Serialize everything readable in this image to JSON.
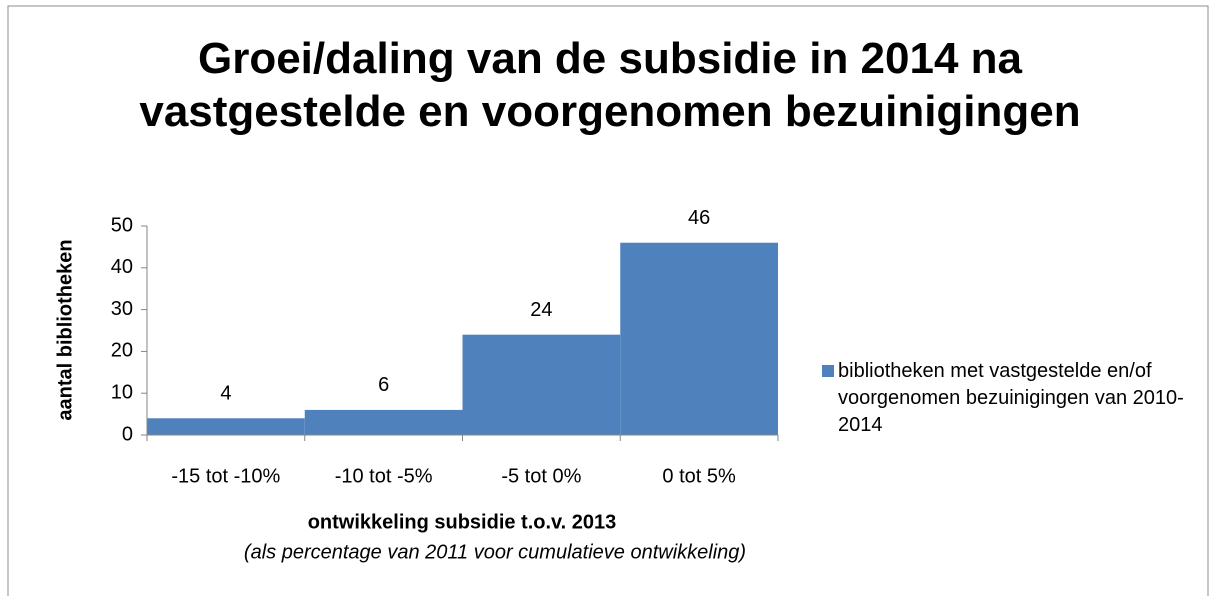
{
  "chart_data": {
    "type": "bar",
    "title": "Groei/daling van de subsidie in 2014 na vastgestelde en voorgenomen bezuinigingen",
    "xlabel": "ontwikkeling subsidie t.o.v. 2013",
    "subtitle": "(als percentage van 2011 voor cumulatieve ontwikkeling)",
    "ylabel": "aantal bibliotheken",
    "categories": [
      "-15 tot -10%",
      "-10 tot -5%",
      "-5 tot 0%",
      "0 tot 5%"
    ],
    "series": [
      {
        "name": "bibliotheken met vastgestelde en/of voorgenomen bezuinigingen van 2010-2014",
        "color": "#4f81bd",
        "values": [
          4,
          6,
          24,
          46
        ]
      }
    ],
    "ylim": [
      0,
      50
    ],
    "yticks": [
      0,
      10,
      20,
      30,
      40,
      50
    ],
    "grid": false,
    "legend": "right"
  }
}
